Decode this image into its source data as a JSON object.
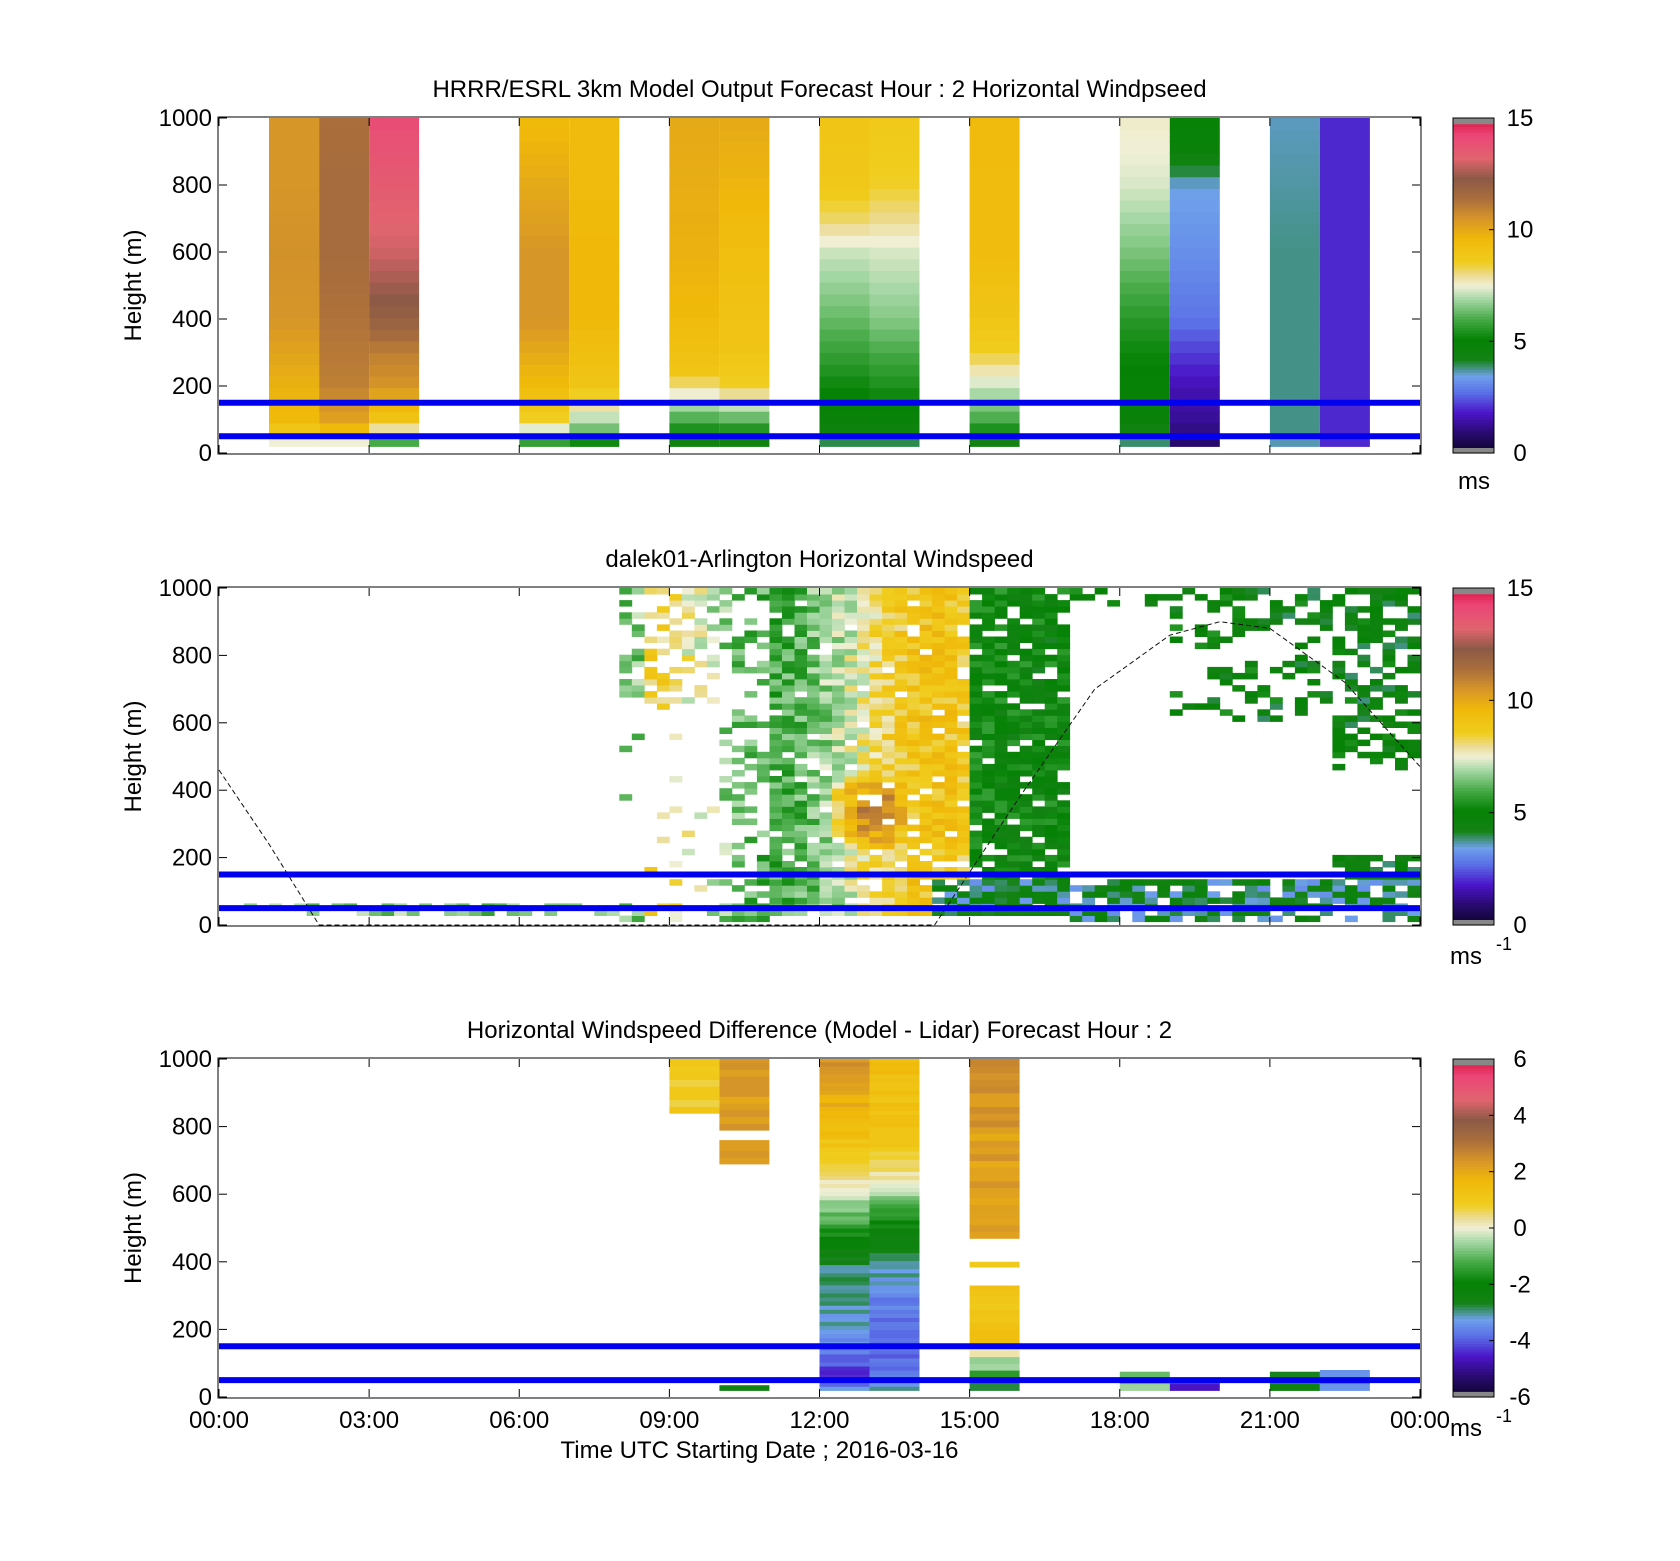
{
  "chart_data": [
    {
      "type": "heatmap",
      "title": "HRRR/ESRL 3km Model Output   Forecast Hour : 2 Horizontal Windpseed",
      "xlabel": "",
      "ylabel": "Height (m)",
      "xlim": [
        0,
        24
      ],
      "ylim": [
        0,
        1000
      ],
      "xticks": [
        "",
        "",
        "",
        "",
        "",
        "",
        "",
        "",
        ""
      ],
      "yticks": [
        "0",
        "200",
        "400",
        "600",
        "800",
        "1000"
      ],
      "ytick_values": [
        0,
        200,
        400,
        600,
        800,
        1000
      ],
      "colorbar": {
        "min": 0,
        "max": 15,
        "ticks": [
          "0",
          "5",
          "10",
          "15"
        ],
        "tick_values": [
          0,
          5,
          10,
          15
        ],
        "unit": "ms",
        "unit_sup": ""
      },
      "reference_lines": [
        {
          "y": 150,
          "color": "#0000ee"
        },
        {
          "y": 50,
          "color": "#0000ee"
        }
      ],
      "columns": [
        {
          "hour": 1,
          "levels": [
            [
              25,
              6.5
            ],
            [
              50,
              8.5
            ],
            [
              100,
              9.5
            ],
            [
              200,
              9.8
            ],
            [
              400,
              10.5
            ],
            [
              600,
              10.6
            ],
            [
              800,
              10.5
            ],
            [
              1000,
              10.5
            ]
          ]
        },
        {
          "hour": 2,
          "levels": [
            [
              25,
              6
            ],
            [
              50,
              9
            ],
            [
              100,
              10.2
            ],
            [
              200,
              11
            ],
            [
              400,
              11.3
            ],
            [
              600,
              11.5
            ],
            [
              800,
              11.5
            ],
            [
              1000,
              11.4
            ]
          ]
        },
        {
          "hour": 3,
          "levels": [
            [
              25,
              5
            ],
            [
              50,
              7
            ],
            [
              100,
              9
            ],
            [
              200,
              10.5
            ],
            [
              300,
              11
            ],
            [
              400,
              12
            ],
            [
              600,
              13
            ],
            [
              800,
              13.5
            ],
            [
              1000,
              14
            ]
          ]
        },
        {
          "hour": 6,
          "levels": [
            [
              25,
              5
            ],
            [
              50,
              6.5
            ],
            [
              100,
              8.5
            ],
            [
              200,
              9.5
            ],
            [
              400,
              10.5
            ],
            [
              600,
              10.5
            ],
            [
              800,
              10
            ],
            [
              1000,
              9.5
            ]
          ]
        },
        {
          "hour": 7,
          "levels": [
            [
              25,
              4.5
            ],
            [
              50,
              6
            ],
            [
              100,
              7
            ],
            [
              200,
              9
            ],
            [
              400,
              9.6
            ],
            [
              600,
              9.6
            ],
            [
              800,
              9.5
            ],
            [
              1000,
              9.5
            ]
          ]
        },
        {
          "hour": 9,
          "levels": [
            [
              25,
              4
            ],
            [
              50,
              5
            ],
            [
              100,
              6
            ],
            [
              150,
              7
            ],
            [
              200,
              8
            ],
            [
              250,
              9
            ],
            [
              400,
              9.5
            ],
            [
              600,
              9.8
            ],
            [
              800,
              9.9
            ],
            [
              1000,
              10
            ]
          ]
        },
        {
          "hour": 10,
          "levels": [
            [
              25,
              4
            ],
            [
              50,
              5
            ],
            [
              100,
              6.2
            ],
            [
              150,
              7.3
            ],
            [
              200,
              8.5
            ],
            [
              300,
              9
            ],
            [
              600,
              9.3
            ],
            [
              800,
              9.7
            ],
            [
              1000,
              10
            ]
          ]
        },
        {
          "hour": 12,
          "levels": [
            [
              25,
              3.5
            ],
            [
              50,
              4.5
            ],
            [
              100,
              4.8
            ],
            [
              200,
              5.2
            ],
            [
              300,
              5.8
            ],
            [
              400,
              6.3
            ],
            [
              600,
              7.2
            ],
            [
              700,
              8.2
            ],
            [
              800,
              8.8
            ],
            [
              1000,
              9
            ]
          ]
        },
        {
          "hour": 13,
          "levels": [
            [
              25,
              3.5
            ],
            [
              50,
              4.5
            ],
            [
              100,
              4.8
            ],
            [
              200,
              5.4
            ],
            [
              300,
              6
            ],
            [
              400,
              6.6
            ],
            [
              600,
              7.3
            ],
            [
              700,
              8
            ],
            [
              800,
              8.5
            ],
            [
              1000,
              8.8
            ]
          ]
        },
        {
          "hour": 15,
          "levels": [
            [
              25,
              3.5
            ],
            [
              50,
              5
            ],
            [
              100,
              6
            ],
            [
              200,
              7.2
            ],
            [
              250,
              7.8
            ],
            [
              300,
              8.5
            ],
            [
              400,
              9
            ],
            [
              600,
              9.4
            ],
            [
              1000,
              9.5
            ]
          ]
        },
        {
          "hour": 18,
          "levels": [
            [
              25,
              3.5
            ],
            [
              50,
              4.3
            ],
            [
              100,
              4.8
            ],
            [
              200,
              5
            ],
            [
              300,
              5.2
            ],
            [
              400,
              5.6
            ],
            [
              600,
              6.5
            ],
            [
              800,
              7.3
            ],
            [
              900,
              7.5
            ],
            [
              1000,
              7.6
            ]
          ]
        },
        {
          "hour": 19,
          "levels": [
            [
              25,
              0.8
            ],
            [
              50,
              1
            ],
            [
              100,
              1.3
            ],
            [
              200,
              1.6
            ],
            [
              300,
              2.2
            ],
            [
              400,
              2.8
            ],
            [
              600,
              3.2
            ],
            [
              800,
              3.5
            ],
            [
              900,
              4.8
            ],
            [
              1000,
              5
            ]
          ]
        },
        {
          "hour": 21,
          "levels": [
            [
              25,
              3.5
            ],
            [
              50,
              3.8
            ],
            [
              100,
              3.8
            ],
            [
              400,
              3.8
            ],
            [
              600,
              3.8
            ],
            [
              800,
              3.7
            ],
            [
              1000,
              3.6
            ]
          ]
        },
        {
          "hour": 22,
          "levels": [
            [
              25,
              2
            ],
            [
              50,
              2
            ],
            [
              100,
              2
            ],
            [
              400,
              2
            ],
            [
              600,
              2
            ],
            [
              800,
              2
            ],
            [
              1000,
              2
            ]
          ]
        }
      ]
    },
    {
      "type": "heatmap",
      "title": "dalek01-Arlington  Horizontal Windspeed",
      "xlabel": "",
      "ylabel": "Height (m)",
      "xlim": [
        0,
        24
      ],
      "ylim": [
        0,
        1000
      ],
      "xticks": [
        "",
        "",
        "",
        "",
        "",
        "",
        "",
        "",
        ""
      ],
      "yticks": [
        "0",
        "200",
        "400",
        "600",
        "800",
        "1000"
      ],
      "ytick_values": [
        0,
        200,
        400,
        600,
        800,
        1000
      ],
      "colorbar": {
        "min": 0,
        "max": 15,
        "ticks": [
          "0",
          "5",
          "10",
          "15"
        ],
        "tick_values": [
          0,
          5,
          10,
          15
        ],
        "unit": "ms",
        "unit_sup": "-1"
      },
      "reference_lines": [
        {
          "y": 150,
          "color": "#0000ee"
        },
        {
          "y": 50,
          "color": "#0000ee"
        }
      ],
      "boundary_layer_curve": [
        [
          0,
          460
        ],
        [
          1,
          240
        ],
        [
          2,
          0
        ],
        [
          14.3,
          0
        ],
        [
          16,
          380
        ],
        [
          17.5,
          700
        ],
        [
          19,
          860
        ],
        [
          20,
          900
        ],
        [
          21,
          880
        ],
        [
          22.5,
          720
        ],
        [
          24,
          470
        ]
      ],
      "core_wind": {
        "center_hour": 13,
        "center_height": 330,
        "peak": 11
      }
    },
    {
      "type": "heatmap",
      "title": "Horizontal Windspeed Difference (Model - Lidar) Forecast Hour : 2",
      "xlabel": "Time UTC  Starting Date ; 2016-03-16",
      "ylabel": "Height (m)",
      "xlim": [
        0,
        24
      ],
      "ylim": [
        0,
        1000
      ],
      "xticks": [
        "00:00",
        "03:00",
        "06:00",
        "09:00",
        "12:00",
        "15:00",
        "18:00",
        "21:00",
        "00:00"
      ],
      "yticks": [
        "0",
        "200",
        "400",
        "600",
        "800",
        "1000"
      ],
      "ytick_values": [
        0,
        200,
        400,
        600,
        800,
        1000
      ],
      "colorbar": {
        "min": -6,
        "max": 6,
        "ticks": [
          "-6",
          "-4",
          "-2",
          "0",
          "2",
          "4",
          "6"
        ],
        "tick_values": [
          -6,
          -4,
          -2,
          0,
          2,
          4,
          6
        ],
        "unit": "ms",
        "unit_sup": "-1"
      },
      "reference_lines": [
        {
          "y": 150,
          "color": "#0000ee"
        },
        {
          "y": 50,
          "color": "#0000ee"
        }
      ],
      "segments": [
        {
          "hour": 9,
          "ranges": [
            [
              840,
              1000,
              0.9
            ]
          ]
        },
        {
          "hour": 10,
          "ranges": [
            [
              690,
              760,
              2.3
            ],
            [
              790,
              1000,
              2.3
            ],
            [
              20,
              35,
              -2.8
            ]
          ]
        },
        {
          "hour": 12,
          "levels": [
            [
              20,
              -3
            ],
            [
              60,
              -4.5
            ],
            [
              100,
              -4
            ],
            [
              150,
              -3.5
            ],
            [
              200,
              -3.2
            ],
            [
              300,
              -3
            ],
            [
              400,
              -2.8
            ],
            [
              500,
              -1.5
            ],
            [
              550,
              -0.8
            ],
            [
              600,
              -0.3
            ],
            [
              650,
              0.5
            ],
            [
              700,
              1
            ],
            [
              800,
              1.5
            ],
            [
              900,
              2
            ],
            [
              1000,
              2.5
            ]
          ]
        },
        {
          "hour": 13,
          "levels": [
            [
              20,
              -3
            ],
            [
              60,
              -3.8
            ],
            [
              100,
              -3.8
            ],
            [
              200,
              -3.8
            ],
            [
              300,
              -3.6
            ],
            [
              380,
              -3
            ],
            [
              450,
              -2.5
            ],
            [
              500,
              -2
            ],
            [
              550,
              -1.5
            ],
            [
              600,
              -0.5
            ],
            [
              650,
              0.2
            ],
            [
              700,
              0.8
            ],
            [
              800,
              1.2
            ],
            [
              1000,
              1.5
            ]
          ]
        },
        {
          "hour": 15,
          "ranges": [
            [
              20,
              40,
              -2.5
            ],
            [
              40,
              80,
              -1.5
            ],
            [
              80,
              120,
              -0.5
            ],
            [
              120,
              160,
              0.3
            ],
            [
              160,
              330,
              1.2
            ],
            [
              385,
              400,
              1
            ],
            [
              470,
              600,
              2.3
            ],
            [
              600,
              800,
              2.2
            ],
            [
              800,
              1000,
              2.5
            ]
          ]
        },
        {
          "hour": 18,
          "ranges": [
            [
              20,
              75,
              -0.8
            ]
          ]
        },
        {
          "hour": 19,
          "ranges": [
            [
              20,
              50,
              -4.5
            ]
          ]
        },
        {
          "hour": 21,
          "ranges": [
            [
              20,
              75,
              -2.6
            ]
          ]
        },
        {
          "hour": 22,
          "ranges": [
            [
              20,
              80,
              -3.2
            ]
          ]
        }
      ]
    }
  ]
}
